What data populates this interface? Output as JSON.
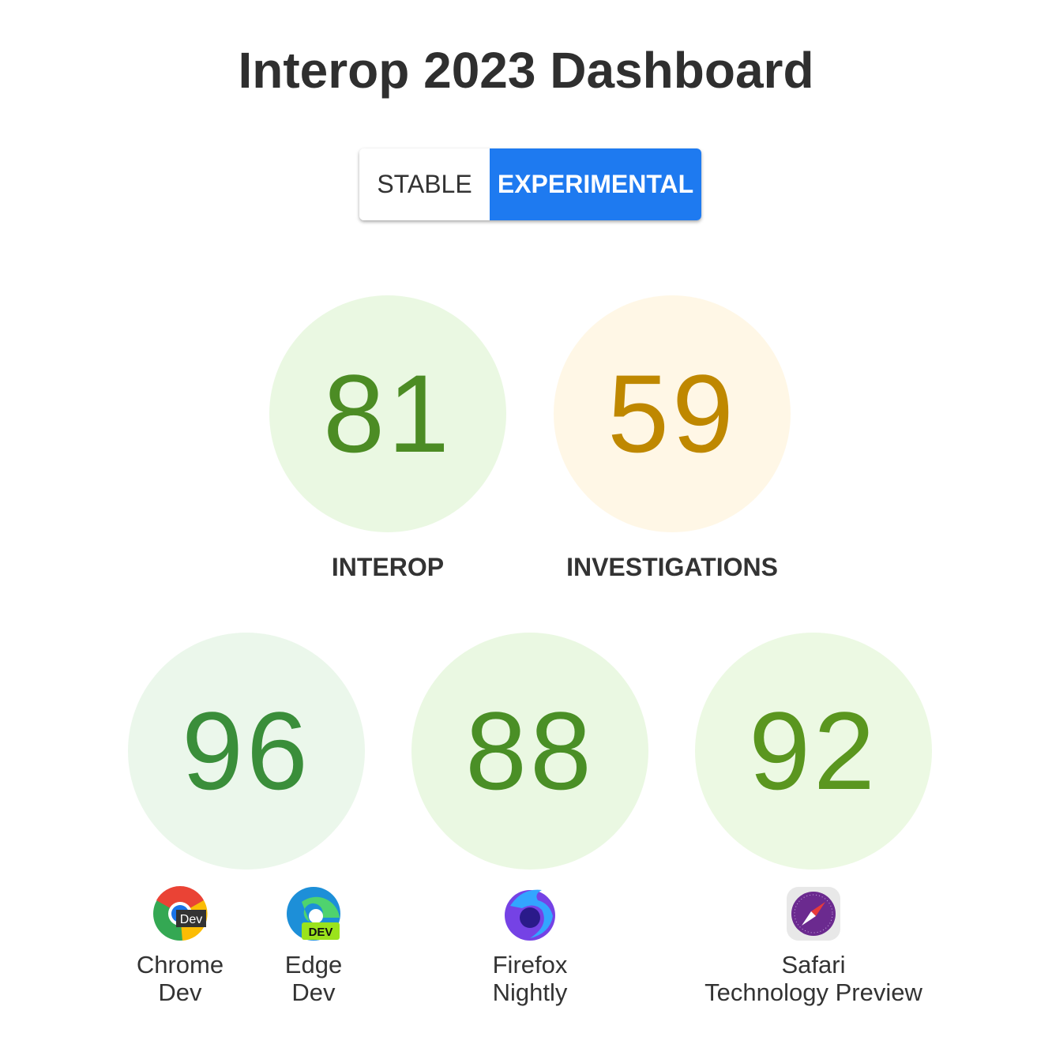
{
  "title": "Interop 2023 Dashboard",
  "toggle": {
    "stable_label": "STABLE",
    "experimental_label": "EXPERIMENTAL",
    "selected": "EXPERIMENTAL",
    "accent": "#1e7af0"
  },
  "summary": [
    {
      "score": "81",
      "label": "INTEROP",
      "color": "#4c8c24",
      "bg": "#eaf8e2"
    },
    {
      "score": "59",
      "label": "INVESTIGATIONS",
      "color": "#bf8800",
      "bg": "#fff7e6"
    }
  ],
  "browsers": [
    {
      "score": "96",
      "name_line1": "Chrome",
      "name_line2": "Dev",
      "color": "#3a8e3a",
      "bg": "#ebf7eb",
      "icon": "chrome-dev-icon"
    },
    {
      "name_line1": "Edge",
      "name_line2": "Dev",
      "icon": "edge-dev-icon"
    },
    {
      "score": "88",
      "name_line1": "Firefox",
      "name_line2": "Nightly",
      "color": "#4a8f26",
      "bg": "#eaf8e2",
      "icon": "firefox-nightly-icon"
    },
    {
      "score": "92",
      "name_line1": "Safari",
      "name_line2": "Technology Preview",
      "color": "#5a961f",
      "bg": "#ecf9e3",
      "icon": "safari-tp-icon"
    }
  ]
}
